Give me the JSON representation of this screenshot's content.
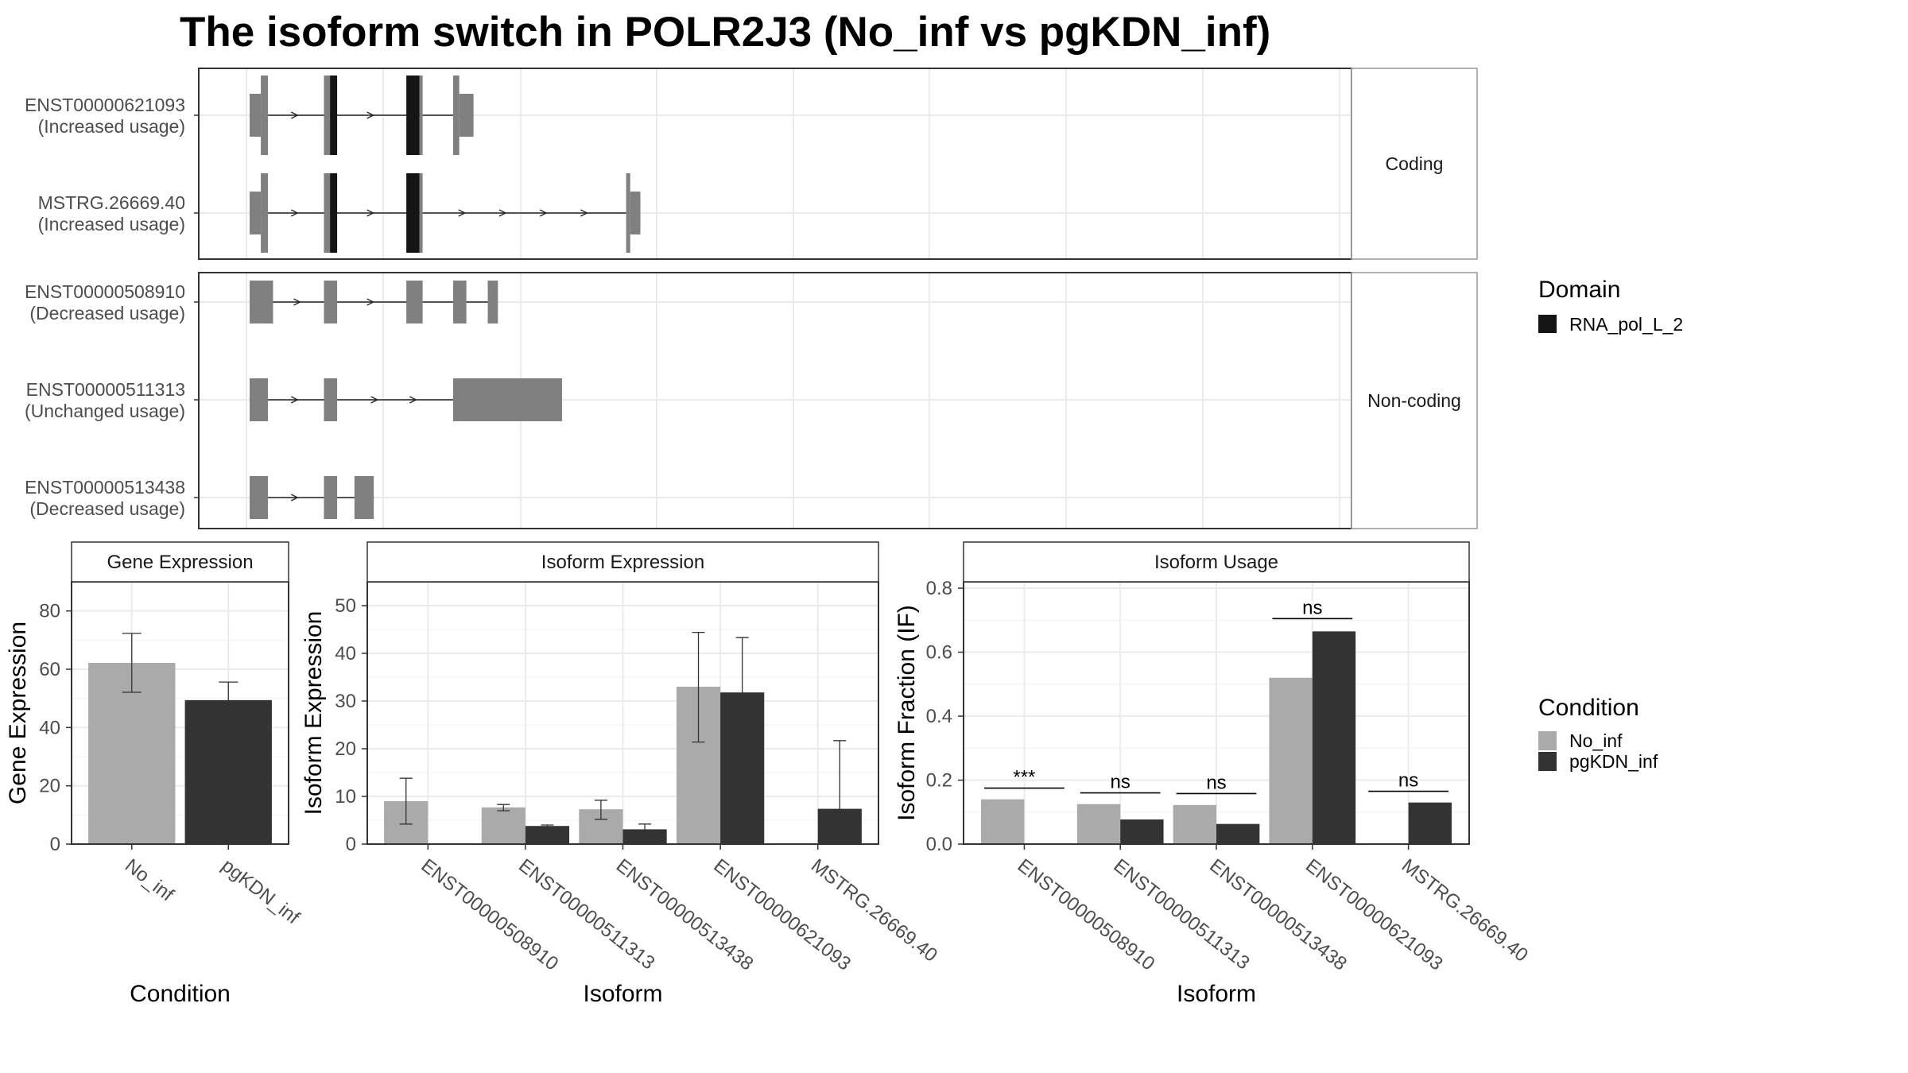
{
  "title": "The isoform switch in POLR2J3 (No_inf vs pgKDN_inf)",
  "colors": {
    "exon": "#808080",
    "domain": "#141414",
    "no_inf": "#aaaaaa",
    "pgkdn_inf": "#333333",
    "grid": "#ebebeb",
    "strip_bg": "#ffffff",
    "panel_border": "#333333"
  },
  "structure": {
    "facets": [
      {
        "label": "Coding",
        "isoforms": [
          {
            "name": "ENST00000621093",
            "usage": "(Increased usage)",
            "exons": [
              {
                "s": 0,
                "e": 11,
                "coding": false
              },
              {
                "s": 11,
                "e": 18,
                "coding": true
              },
              {
                "s": 73,
                "e": 79,
                "coding": true
              },
              {
                "s": 79,
                "e": 86,
                "coding": true,
                "domain": true
              },
              {
                "s": 154,
                "e": 167,
                "coding": true,
                "domain": true
              },
              {
                "s": 167,
                "e": 170,
                "coding": true
              },
              {
                "s": 200,
                "e": 206,
                "coding": true
              },
              {
                "s": 206,
                "e": 220,
                "coding": false
              }
            ]
          },
          {
            "name": "MSTRG.26669.40",
            "usage": "(Increased usage)",
            "exons": [
              {
                "s": 0,
                "e": 11,
                "coding": false
              },
              {
                "s": 11,
                "e": 18,
                "coding": true
              },
              {
                "s": 73,
                "e": 79,
                "coding": true
              },
              {
                "s": 79,
                "e": 86,
                "coding": true,
                "domain": true
              },
              {
                "s": 154,
                "e": 167,
                "coding": true,
                "domain": true
              },
              {
                "s": 167,
                "e": 170,
                "coding": true
              },
              {
                "s": 370,
                "e": 374,
                "coding": true
              },
              {
                "s": 374,
                "e": 384,
                "coding": false
              }
            ]
          }
        ]
      },
      {
        "label": "Non-coding",
        "isoforms": [
          {
            "name": "ENST00000508910",
            "usage": "(Decreased usage)",
            "exons": [
              {
                "s": 0,
                "e": 23,
                "coding": false
              },
              {
                "s": 73,
                "e": 86,
                "coding": false
              },
              {
                "s": 154,
                "e": 170,
                "coding": false
              },
              {
                "s": 200,
                "e": 213,
                "coding": false
              },
              {
                "s": 234,
                "e": 244,
                "coding": false
              }
            ]
          },
          {
            "name": "ENST00000511313",
            "usage": "(Unchanged usage)",
            "exons": [
              {
                "s": 0,
                "e": 18,
                "coding": false
              },
              {
                "s": 73,
                "e": 86,
                "coding": false
              },
              {
                "s": 200,
                "e": 307,
                "coding": false
              }
            ]
          },
          {
            "name": "ENST00000513438",
            "usage": "(Decreased usage)",
            "exons": [
              {
                "s": 0,
                "e": 18,
                "coding": false
              },
              {
                "s": 73,
                "e": 86,
                "coding": false
              },
              {
                "s": 103,
                "e": 122,
                "coding": false
              }
            ]
          }
        ]
      }
    ]
  },
  "legend_domain": {
    "title": "Domain",
    "items": [
      {
        "label": "RNA_pol_L_2"
      }
    ]
  },
  "legend_condition": {
    "title": "Condition",
    "items": [
      {
        "label": "No_inf"
      },
      {
        "label": "pgKDN_inf"
      }
    ]
  },
  "chart_data": [
    {
      "type": "bar",
      "title": "Gene Expression",
      "xlabel": "Condition",
      "ylabel": "Gene Expression",
      "ylim": [
        0,
        90
      ],
      "yticks": [
        0,
        20,
        40,
        60,
        80
      ],
      "categories": [
        "No_inf",
        "pgKDN_inf"
      ],
      "values": [
        62.2,
        49.4
      ],
      "errors": [
        [
          52.1,
          72.3
        ],
        [
          43.2,
          55.6
        ]
      ]
    },
    {
      "type": "bar",
      "title": "Isoform Expression",
      "xlabel": "Isoform",
      "ylabel": "Isoform Expression",
      "ylim": [
        0,
        55
      ],
      "yticks": [
        0,
        10,
        20,
        30,
        40,
        50
      ],
      "categories": [
        "ENST00000508910",
        "ENST00000511313",
        "ENST00000513438",
        "ENST00000621093",
        "MSTRG.26669.40"
      ],
      "series": [
        {
          "name": "No_inf",
          "values": [
            9.0,
            7.7,
            7.3,
            33.0,
            0.0
          ],
          "errors": [
            [
              4.2,
              13.8
            ],
            [
              7.0,
              8.3
            ],
            [
              5.2,
              9.2
            ],
            [
              21.4,
              44.4
            ],
            [
              0.0,
              0.0
            ]
          ]
        },
        {
          "name": "pgKDN_inf",
          "values": [
            0.0,
            3.8,
            3.1,
            31.8,
            7.4
          ],
          "errors": [
            [
              0.0,
              0.0
            ],
            [
              3.6,
              4.0
            ],
            [
              2.0,
              4.2
            ],
            [
              20.2,
              43.3
            ],
            [
              0.0,
              21.7
            ]
          ]
        }
      ]
    },
    {
      "type": "bar",
      "title": "Isoform Usage",
      "xlabel": "Isoform",
      "ylabel": "Isoform Fraction (IF)",
      "ylim": [
        0,
        0.82
      ],
      "yticks": [
        0.0,
        0.2,
        0.4,
        0.6,
        0.8
      ],
      "yticklabels": [
        "0.0",
        "0.2",
        "0.4",
        "0.6",
        "0.8"
      ],
      "categories": [
        "ENST00000508910",
        "ENST00000511313",
        "ENST00000513438",
        "ENST00000621093",
        "MSTRG.26669.40"
      ],
      "series": [
        {
          "name": "No_inf",
          "values": [
            0.14,
            0.125,
            0.122,
            0.52,
            0.0
          ]
        },
        {
          "name": "pgKDN_inf",
          "values": [
            0.0,
            0.077,
            0.063,
            0.665,
            0.13
          ]
        }
      ],
      "significance": [
        "***",
        "ns",
        "ns",
        "ns",
        "ns"
      ],
      "significance_y": [
        0.175,
        0.16,
        0.158,
        0.705,
        0.165
      ]
    }
  ]
}
